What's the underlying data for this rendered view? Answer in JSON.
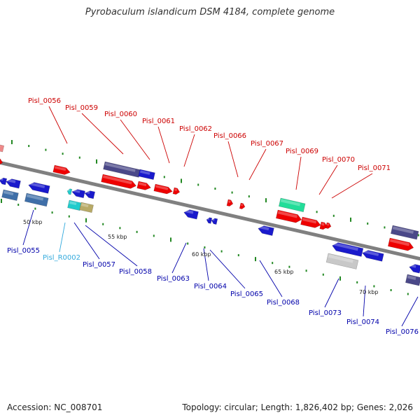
{
  "title": "Pyrobaculum islandicum DSM 4184, complete genome",
  "footer": {
    "accession": "Accession: NC_008701",
    "summary": "Topology: circular; Length: 1,826,402 bp; Genes: 2,026"
  },
  "colors": {
    "backbone": "#808080",
    "forward_label": "#cc0000",
    "reverse_label": "#0000aa",
    "rna_label": "#33aadd",
    "tick": "#228822",
    "red_gene": "#ee0000",
    "blue_gene": "#1a1acc",
    "purple_gene": "#4a4888",
    "steel_gene": "#3f6fa8",
    "teal_gene": "#20cccc",
    "khaki_gene": "#b8aa66",
    "green_gene": "#22dd99",
    "gray_gene": "#c8c8c8",
    "pink_gene": "#ee8888"
  },
  "scale_labels": [
    "50 kbp",
    "55 kbp",
    "60 kbp",
    "65 kbp",
    "70 kbp"
  ],
  "gene_labels": {
    "top": [
      "Pisl_0056",
      "Pisl_0059",
      "Pisl_0060",
      "Pisl_0061",
      "Pisl_0062",
      "Pisl_0066",
      "Pisl_0067",
      "Pisl_0069",
      "Pisl_0070",
      "Pisl_0071"
    ],
    "bottom": [
      "Pisl_0055",
      "Pisl_R0002",
      "Pisl_0057",
      "Pisl_0058",
      "Pisl_0063",
      "Pisl_0064",
      "Pisl_0065",
      "Pisl_0068",
      "Pisl_0073",
      "Pisl_0074",
      "Pisl_0076"
    ]
  }
}
